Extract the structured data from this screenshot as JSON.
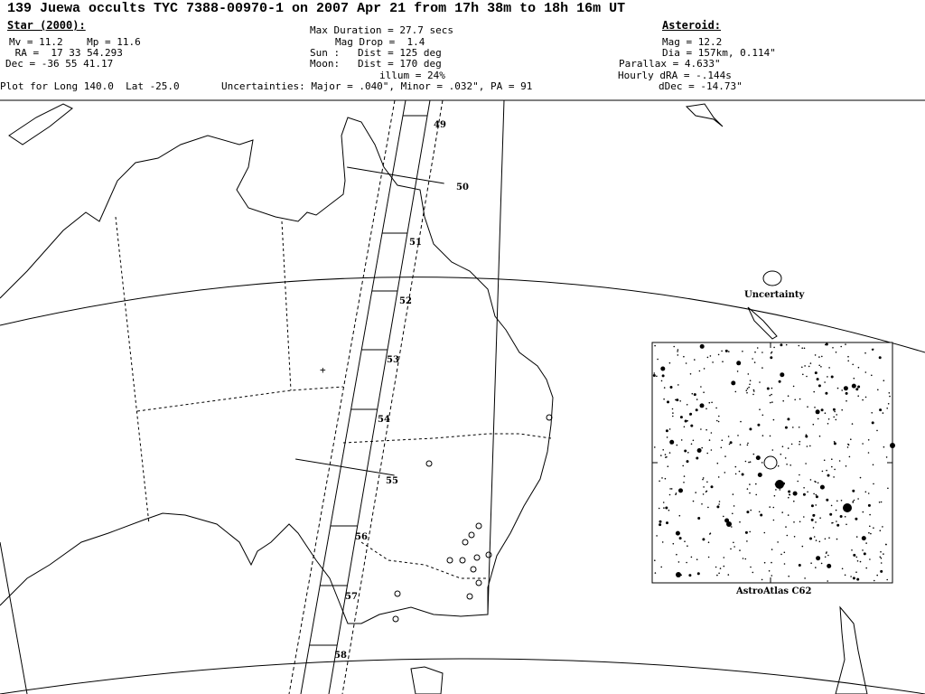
{
  "title": "139 Juewa occults TYC 7388-00970-1 on 2007 Apr 21 from 17h 38m to 18h 16m UT",
  "star": {
    "heading": "Star (2000):",
    "mags": "Mv = 11.2    Mp = 11.6",
    "ra": " RA =  17 33 54.293",
    "dec": "Dec = -36 55 41.17"
  },
  "event": {
    "max_duration": "Max Duration = 27.7 secs",
    "mag_drop": "Mag Drop =  1.4",
    "sun": "Sun :   Dist = 125 deg",
    "moon": "Moon:   Dist = 170 deg",
    "illum": "illum = 24%"
  },
  "asteroid": {
    "heading": "Asteroid:",
    "mag": "Mag = 12.2",
    "dia": "Dia = 157km, 0.114\"",
    "parallax": "Parallax = 4.633\"",
    "hourly_dra": "Hourly dRA = -.144s",
    "ddec": "dDec = -14.73\""
  },
  "plot_for": "Plot for Long 140.0  Lat -25.0",
  "uncertainties": "Uncertainties: Major = .040\", Minor = .032\", PA = 91",
  "map": {
    "time_labels": [
      "49",
      "50",
      "51",
      "52",
      "53",
      "54",
      "55",
      "56",
      "57",
      "58"
    ],
    "uncertainty_label": "Uncertainty",
    "star_chart_label": "AstroAtlas C62"
  }
}
